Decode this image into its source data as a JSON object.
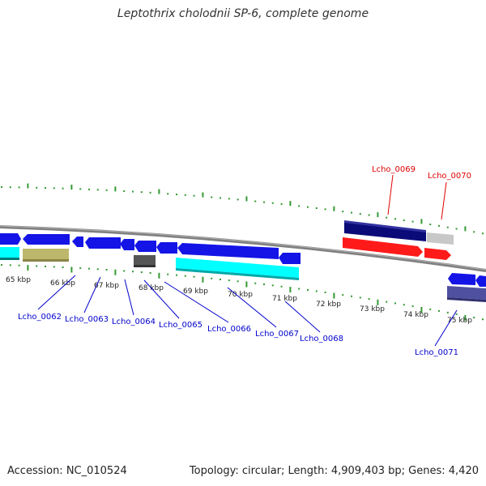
{
  "title": "Leptothrix cholodnii SP-6, complete genome",
  "footer": {
    "accession": "Accession: NC_010524",
    "summary": "Topology: circular; Length: 4,909,403 bp; Genes: 4,420"
  },
  "kbp_labels": [
    "65 kbp",
    "66 kbp",
    "67 kbp",
    "68 kbp",
    "69 kbp",
    "70 kbp",
    "71 kbp",
    "72 kbp",
    "73 kbp",
    "74 kbp",
    "75 kbp"
  ],
  "gene_labels": [
    {
      "name": "Lcho_0062",
      "color": "#0000cc"
    },
    {
      "name": "Lcho_0063",
      "color": "#0000cc"
    },
    {
      "name": "Lcho_0064",
      "color": "#0000cc"
    },
    {
      "name": "Lcho_0065",
      "color": "#0000cc"
    },
    {
      "name": "Lcho_0066",
      "color": "#0000cc"
    },
    {
      "name": "Lcho_0067",
      "color": "#0000cc"
    },
    {
      "name": "Lcho_0068",
      "color": "#0000cc"
    },
    {
      "name": "Lcho_0069",
      "color": "#dd0000"
    },
    {
      "name": "Lcho_0070",
      "color": "#dd0000"
    },
    {
      "name": "Lcho_0071",
      "color": "#0000cc"
    }
  ],
  "colors": {
    "backbone": "#808080",
    "tick": "#339933",
    "cds_forward": "#1414e6",
    "rna": "#ff1a1a",
    "dark_navy": "#0a0a78",
    "gray_block": "#c8c8c8",
    "dark_gray_block": "#555555",
    "cyan": "#00ffff",
    "khaki": "#bdb76b",
    "slate": "#5050a0"
  }
}
